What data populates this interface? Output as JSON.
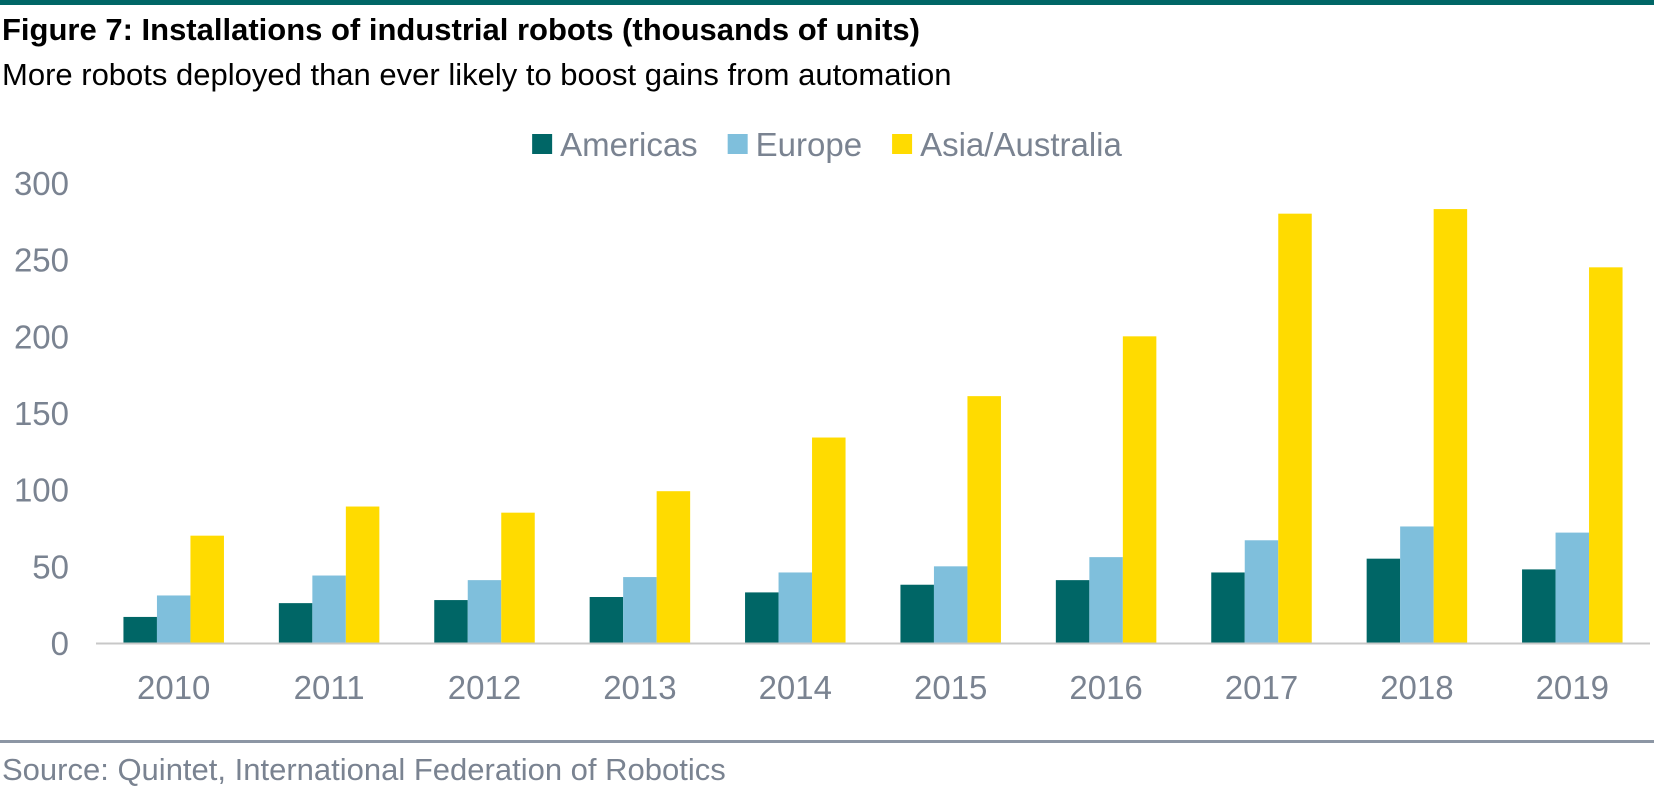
{
  "figure": {
    "title": "Figure 7: Installations of industrial robots (thousands of units)",
    "subtitle": "More robots deployed than ever likely to boost gains from automation",
    "source": "Source: Quintet, International Federation of Robotics",
    "accent_color": "#006666"
  },
  "chart_data": {
    "type": "bar",
    "title": "Figure 7: Installations of industrial robots (thousands of units)",
    "subtitle": "More robots deployed than ever likely to boost gains from automation",
    "xlabel": "",
    "ylabel": "",
    "categories": [
      "2010",
      "2011",
      "2012",
      "2013",
      "2014",
      "2015",
      "2016",
      "2017",
      "2018",
      "2019"
    ],
    "series": [
      {
        "name": "Americas",
        "color": "#006666",
        "values": [
          17,
          26,
          28,
          30,
          33,
          38,
          41,
          46,
          55,
          48
        ]
      },
      {
        "name": "Europe",
        "color": "#7fbfdc",
        "values": [
          31,
          44,
          41,
          43,
          46,
          50,
          56,
          67,
          76,
          72
        ]
      },
      {
        "name": "Asia/Australia",
        "color": "#ffdb00",
        "values": [
          70,
          89,
          85,
          99,
          134,
          161,
          200,
          280,
          283,
          245
        ]
      }
    ],
    "ylim": [
      0,
      300
    ],
    "yticks": [
      0,
      50,
      100,
      150,
      200,
      250,
      300
    ],
    "grid": false,
    "legend_position": "top-center"
  }
}
